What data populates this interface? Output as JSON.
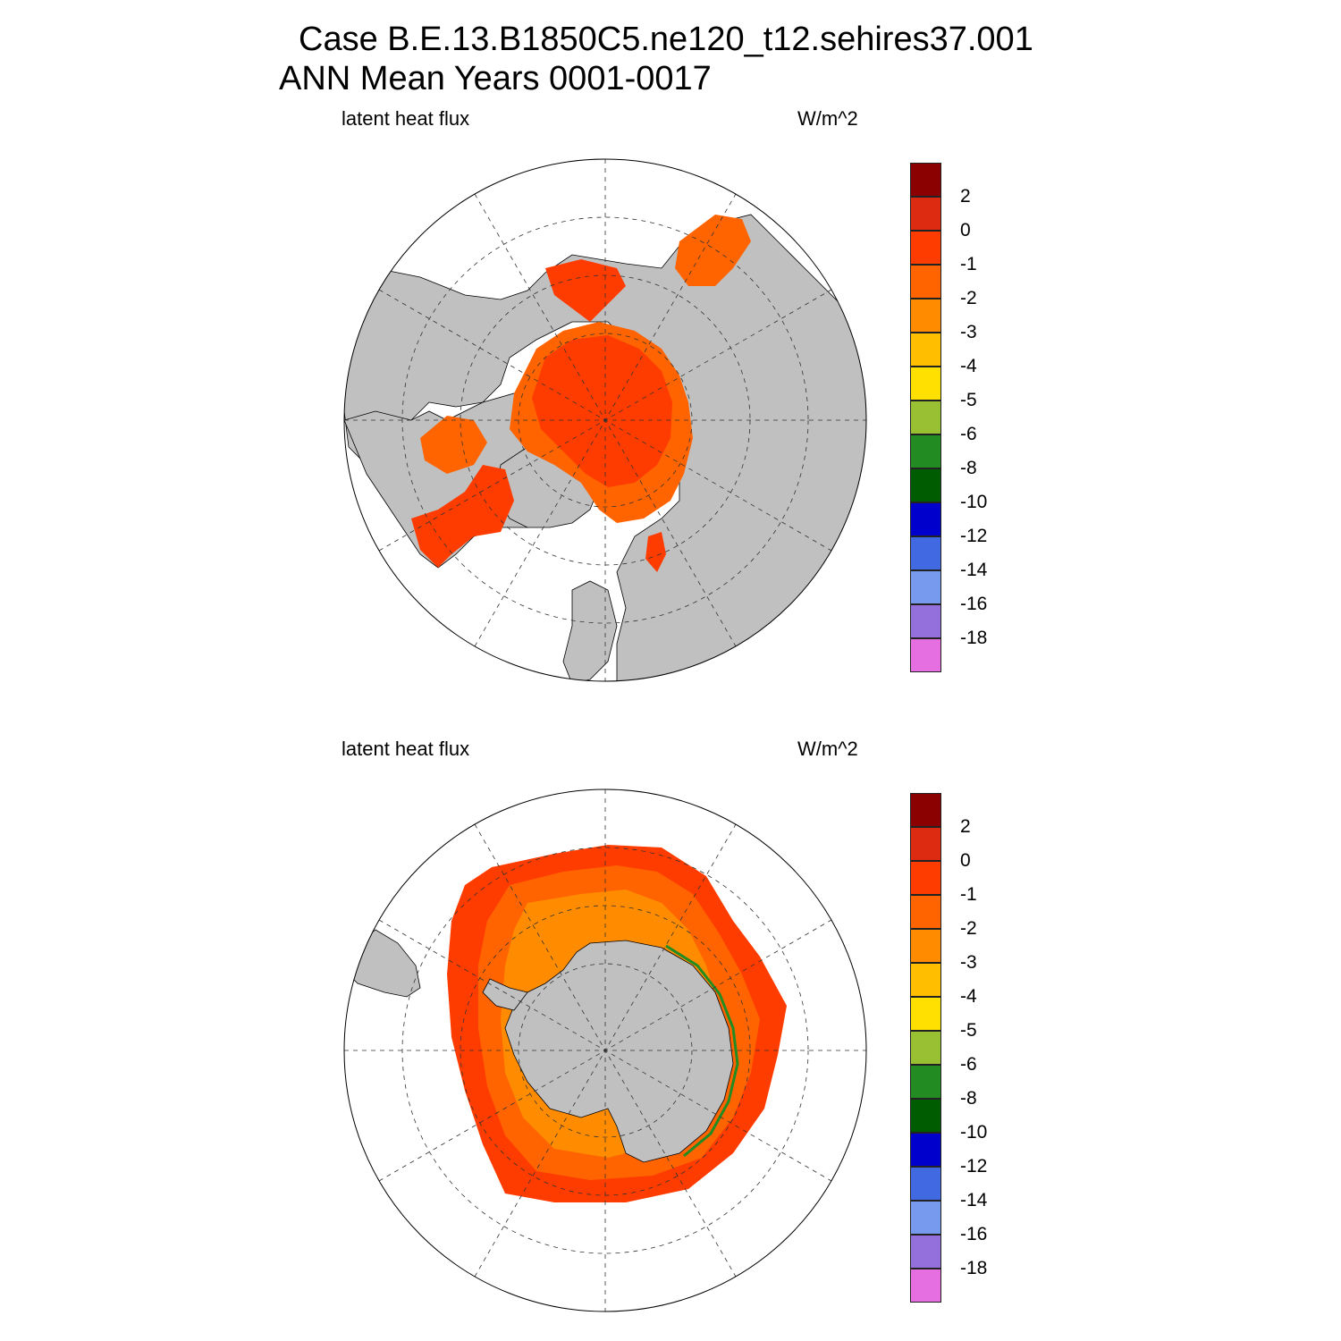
{
  "title": {
    "line1": "Case B.E.13.B1850C5.ne120_t12.sehires37.001",
    "line2": "ANN Mean     Years 0001-0017"
  },
  "panels": [
    {
      "name": "north",
      "left_label": "latent heat flux",
      "right_label": "W/m^2"
    },
    {
      "name": "south",
      "left_label": "latent heat flux",
      "right_label": "W/m^2"
    }
  ],
  "colorbar": {
    "colors": [
      "#8b0000",
      "#dc2b10",
      "#ff3c00",
      "#ff6400",
      "#ff8c00",
      "#ffbf00",
      "#ffe000",
      "#99bf33",
      "#228b22",
      "#005c00",
      "#0000cd",
      "#4169e1",
      "#7799ee",
      "#9370db",
      "#e56fe0"
    ],
    "labels": [
      "2",
      "0",
      "-1",
      "-2",
      "-3",
      "-4",
      "-5",
      "-6",
      "-8",
      "-10",
      "-12",
      "-14",
      "-16",
      "-18"
    ]
  },
  "colors": {
    "land": "#c0c0c0",
    "ocean": "#ffffff",
    "flux_main": "#ff3c00",
    "flux_edge": "#ff6400",
    "flux_inner": "#ff8c00"
  }
}
